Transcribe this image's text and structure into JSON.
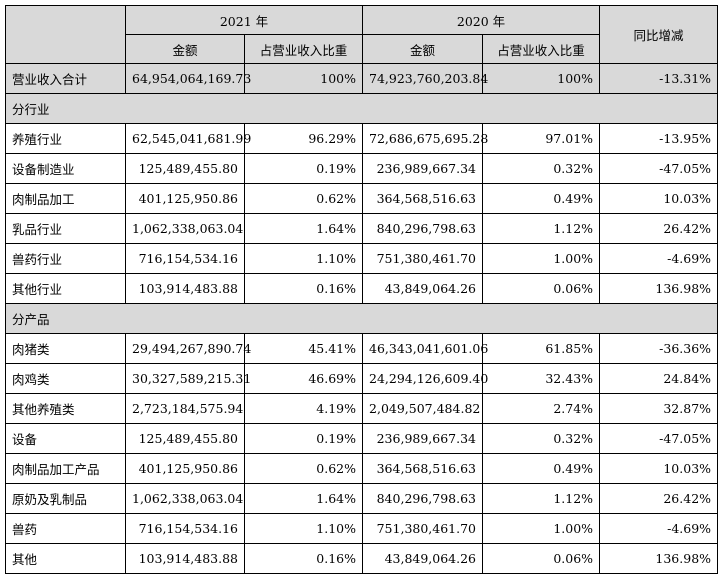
{
  "header": {
    "year_2021": "2021 年",
    "year_2020": "2020 年",
    "amount": "金额",
    "share": "占营业收入比重",
    "yoy": "同比增减"
  },
  "total": {
    "label": "营业收入合计",
    "amt_2021": "64,954,064,169.73",
    "pct_2021": "100%",
    "amt_2020": "74,923,760,203.84",
    "pct_2020": "100%",
    "yoy": "-13.31%"
  },
  "sections": [
    {
      "title": "分行业",
      "rows": [
        {
          "label": "养殖行业",
          "amt_2021": "62,545,041,681.99",
          "pct_2021": "96.29%",
          "amt_2020": "72,686,675,695.28",
          "pct_2020": "97.01%",
          "yoy": "-13.95%"
        },
        {
          "label": "设备制造业",
          "amt_2021": "125,489,455.80",
          "pct_2021": "0.19%",
          "amt_2020": "236,989,667.34",
          "pct_2020": "0.32%",
          "yoy": "-47.05%"
        },
        {
          "label": "肉制品加工",
          "amt_2021": "401,125,950.86",
          "pct_2021": "0.62%",
          "amt_2020": "364,568,516.63",
          "pct_2020": "0.49%",
          "yoy": "10.03%"
        },
        {
          "label": "乳品行业",
          "amt_2021": "1,062,338,063.04",
          "pct_2021": "1.64%",
          "amt_2020": "840,296,798.63",
          "pct_2020": "1.12%",
          "yoy": "26.42%"
        },
        {
          "label": "兽药行业",
          "amt_2021": "716,154,534.16",
          "pct_2021": "1.10%",
          "amt_2020": "751,380,461.70",
          "pct_2020": "1.00%",
          "yoy": "-4.69%"
        },
        {
          "label": "其他行业",
          "amt_2021": "103,914,483.88",
          "pct_2021": "0.16%",
          "amt_2020": "43,849,064.26",
          "pct_2020": "0.06%",
          "yoy": "136.98%"
        }
      ]
    },
    {
      "title": "分产品",
      "rows": [
        {
          "label": "肉猪类",
          "amt_2021": "29,494,267,890.74",
          "pct_2021": "45.41%",
          "amt_2020": "46,343,041,601.06",
          "pct_2020": "61.85%",
          "yoy": "-36.36%"
        },
        {
          "label": "肉鸡类",
          "amt_2021": "30,327,589,215.31",
          "pct_2021": "46.69%",
          "amt_2020": "24,294,126,609.40",
          "pct_2020": "32.43%",
          "yoy": "24.84%"
        },
        {
          "label": "其他养殖类",
          "amt_2021": "2,723,184,575.94",
          "pct_2021": "4.19%",
          "amt_2020": "2,049,507,484.82",
          "pct_2020": "2.74%",
          "yoy": "32.87%"
        },
        {
          "label": "设备",
          "amt_2021": "125,489,455.80",
          "pct_2021": "0.19%",
          "amt_2020": "236,989,667.34",
          "pct_2020": "0.32%",
          "yoy": "-47.05%"
        },
        {
          "label": "肉制品加工产品",
          "amt_2021": "401,125,950.86",
          "pct_2021": "0.62%",
          "amt_2020": "364,568,516.63",
          "pct_2020": "0.49%",
          "yoy": "10.03%"
        },
        {
          "label": "原奶及乳制品",
          "amt_2021": "1,062,338,063.04",
          "pct_2021": "1.64%",
          "amt_2020": "840,296,798.63",
          "pct_2020": "1.12%",
          "yoy": "26.42%"
        },
        {
          "label": "兽药",
          "amt_2021": "716,154,534.16",
          "pct_2021": "1.10%",
          "amt_2020": "751,380,461.70",
          "pct_2020": "1.00%",
          "yoy": "-4.69%"
        },
        {
          "label": "其他",
          "amt_2021": "103,914,483.88",
          "pct_2021": "0.16%",
          "amt_2020": "43,849,064.26",
          "pct_2020": "0.06%",
          "yoy": "136.98%"
        }
      ]
    }
  ]
}
